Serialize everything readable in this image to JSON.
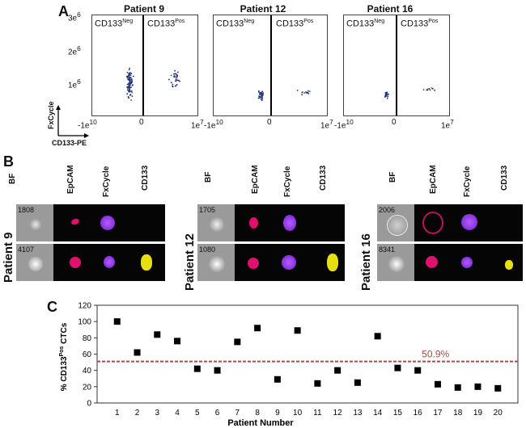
{
  "panels": {
    "a": "A",
    "b": "B",
    "c": "C"
  },
  "scatter": {
    "y_ticks": [
      "3e",
      "2e",
      "1e"
    ],
    "y_tick_exp": "6",
    "x_ticks": [
      "-1e",
      "0",
      "1e"
    ],
    "x_tick_exps": [
      "10",
      "",
      "7"
    ],
    "y_axis_label": "FxCycle",
    "x_axis_label": "CD133-PE",
    "gate_neg": "CD133",
    "gate_neg_sup": "Neg",
    "gate_pos": "CD133",
    "gate_pos_sup": "Pos",
    "plots": [
      {
        "title": "Patient 9"
      },
      {
        "title": "Patient 12"
      },
      {
        "title": "Patient 16"
      }
    ]
  },
  "imaging": {
    "channels": [
      "BF",
      "EpCAM",
      "FxCycle",
      "CD133"
    ],
    "groups": [
      {
        "patient": "Patient 9",
        "rows": [
          {
            "id": "1808"
          },
          {
            "id": "4107"
          }
        ]
      },
      {
        "patient": "Patient 12",
        "rows": [
          {
            "id": "1705"
          },
          {
            "id": "1080"
          }
        ]
      },
      {
        "patient": "Patient 16",
        "rows": [
          {
            "id": "2006"
          },
          {
            "id": "8341"
          }
        ]
      }
    ]
  },
  "colors": {
    "epcam": "#e0106e",
    "fxcycle": "#8a28e8",
    "cd133": "#e6e010",
    "reference": "#b04848",
    "markers": "#000000"
  },
  "chart_data": {
    "type": "scatter",
    "xlabel": "Patient Number",
    "ylabel": "% CD133",
    "ylabel_sup": "Pos",
    "ylabel_suffix": " CTCs",
    "x": [
      1,
      2,
      3,
      4,
      5,
      6,
      7,
      8,
      9,
      10,
      11,
      12,
      13,
      14,
      15,
      16,
      17,
      18,
      19,
      20
    ],
    "y": [
      100,
      62,
      84,
      76,
      42,
      40,
      75,
      92,
      29,
      89,
      24,
      40,
      25,
      82,
      43,
      40,
      23,
      19,
      20,
      18
    ],
    "x_ticks": [
      "1",
      "2",
      "3",
      "4",
      "5",
      "6",
      "7",
      "8",
      "9",
      "10",
      "11",
      "12",
      "13",
      "14",
      "15",
      "16",
      "17",
      "18",
      "19",
      "20"
    ],
    "y_ticks": [
      0,
      20,
      40,
      60,
      80,
      100,
      120
    ],
    "ylim": [
      0,
      120
    ],
    "xlim": [
      0,
      21
    ],
    "reference_line": {
      "value": 50.9,
      "label": "50.9%"
    },
    "marker": "square",
    "grid": false
  }
}
